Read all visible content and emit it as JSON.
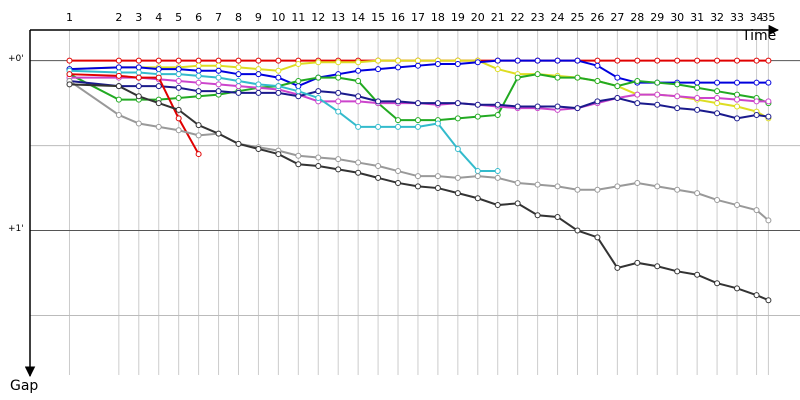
{
  "chart_data": {
    "type": "line",
    "xlabel": "Time",
    "ylabel": "Gap",
    "x": [
      2,
      4.5,
      5.51,
      6.52,
      7.53,
      8.54,
      9.55,
      10.56,
      11.57,
      12.58,
      13.59,
      14.6,
      15.61,
      16.62,
      17.63,
      18.64,
      19.65,
      20.66,
      21.67,
      22.68,
      23.69,
      24.7,
      25.71,
      26.72,
      27.73,
      28.74,
      29.75,
      30.76,
      31.77,
      32.78,
      33.79,
      34.8,
      35.81,
      36.8,
      37.4
    ],
    "x_labels": [
      "1",
      "2",
      "3",
      "4",
      "5",
      "6",
      "7",
      "8",
      "9",
      "10",
      "11",
      "12",
      "13",
      "14",
      "15",
      "16",
      "17",
      "18",
      "19",
      "20",
      "21",
      "22",
      "23",
      "24",
      "25",
      "26",
      "27",
      "28",
      "29",
      "30",
      "31",
      "32",
      "33",
      "34",
      "35"
    ],
    "xlim": [
      0,
      39
    ],
    "ylim": [
      -0.18,
      1.85
    ],
    "yticks": [
      {
        "value": 0,
        "label": "+0'"
      },
      {
        "value": 1,
        "label": "+1'"
      }
    ],
    "yminor": [
      0.5,
      1.5
    ],
    "series": [
      {
        "color": "#e00000",
        "values": [
          0,
          0,
          0,
          0,
          0,
          0,
          0,
          0,
          0,
          0,
          0,
          0,
          0,
          0,
          0,
          0,
          0,
          0,
          0,
          0,
          0,
          0,
          0,
          0,
          0,
          0,
          0,
          0,
          0,
          0,
          0,
          0,
          0,
          0,
          0
        ]
      },
      {
        "color": "#dddd22",
        "values": [
          0.05,
          0.04,
          0.04,
          0.04,
          0.04,
          0.03,
          0.03,
          0.04,
          0.05,
          0.06,
          0.02,
          0.01,
          0.01,
          0.01,
          0,
          0,
          0,
          0,
          0,
          0,
          0.05,
          0.08,
          0.08,
          0.09,
          0.1,
          0.12,
          0.15,
          0.2,
          0.2,
          0.21,
          0.23,
          0.25,
          0.27,
          0.3,
          0.34
        ]
      },
      {
        "color": "#0000dd",
        "values": [
          0.05,
          0.04,
          0.04,
          0.05,
          0.05,
          0.06,
          0.06,
          0.08,
          0.08,
          0.1,
          0.15,
          0.1,
          0.08,
          0.06,
          0.05,
          0.04,
          0.03,
          0.02,
          0.02,
          0.01,
          0,
          0,
          0,
          0,
          0,
          0.03,
          0.1,
          0.13,
          0.13,
          0.13,
          0.13,
          0.13,
          0.13,
          0.13,
          0.13
        ]
      },
      {
        "color": "#22aa22",
        "values": [
          0.08,
          0.23,
          0.23,
          0.23,
          0.22,
          0.21,
          0.2,
          0.18,
          0.16,
          0.15,
          0.12,
          0.1,
          0.1,
          0.12,
          0.25,
          0.35,
          0.35,
          0.35,
          0.34,
          0.33,
          0.32,
          0.1,
          0.08,
          0.1,
          0.1,
          0.12,
          0.15,
          0.12,
          0.13,
          0.14,
          0.16,
          0.18,
          0.2,
          0.22,
          0.25
        ]
      },
      {
        "color": "#cc44cc",
        "values": [
          0.1,
          0.1,
          0.1,
          0.11,
          0.12,
          0.13,
          0.14,
          0.15,
          0.16,
          0.17,
          0.2,
          0.24,
          0.24,
          0.24,
          0.25,
          0.25,
          0.25,
          0.26,
          0.25,
          0.26,
          0.27,
          0.28,
          0.28,
          0.29,
          0.28,
          0.25,
          0.22,
          0.2,
          0.2,
          0.21,
          0.22,
          0.22,
          0.23,
          0.24,
          0.24
        ]
      },
      {
        "color": "#1a1a8c",
        "values": [
          0.12,
          0.15,
          0.15,
          0.15,
          0.16,
          0.18,
          0.18,
          0.19,
          0.19,
          0.19,
          0.21,
          0.18,
          0.19,
          0.21,
          0.24,
          0.24,
          0.25,
          0.25,
          0.25,
          0.26,
          0.26,
          0.27,
          0.27,
          0.27,
          0.28,
          0.24,
          0.22,
          0.25,
          0.26,
          0.28,
          0.29,
          0.31,
          0.34,
          0.32,
          0.33
        ]
      },
      {
        "color": "#33bbcc",
        "values": [
          0.06,
          0.07,
          0.07,
          0.08,
          0.08,
          0.09,
          0.1,
          0.12,
          0.14,
          0.15,
          0.18,
          0.22,
          0.3,
          0.39,
          0.39,
          0.39,
          0.39,
          0.37,
          0.52,
          0.65,
          0.65,
          null,
          null,
          null,
          null,
          null,
          null,
          null,
          null,
          null,
          null,
          null,
          null,
          null,
          null
        ]
      },
      {
        "color": "#e00000",
        "values": [
          0.08,
          0.09,
          0.1,
          0.1,
          0.34,
          0.55,
          null,
          null,
          null,
          null,
          null,
          null,
          null,
          null,
          null,
          null,
          null,
          null,
          null,
          null,
          null,
          null,
          null,
          null,
          null,
          null,
          null,
          null,
          null,
          null,
          null,
          null,
          null,
          null,
          null
        ]
      },
      {
        "color": "#999999",
        "values": [
          0.12,
          0.32,
          0.37,
          0.39,
          0.41,
          0.44,
          0.43,
          0.49,
          0.51,
          0.53,
          0.56,
          0.57,
          0.58,
          0.6,
          0.62,
          0.65,
          0.68,
          0.68,
          0.69,
          0.68,
          0.69,
          0.72,
          0.73,
          0.74,
          0.76,
          0.76,
          0.74,
          0.72,
          0.74,
          0.76,
          0.78,
          0.82,
          0.85,
          0.88,
          0.94
        ]
      },
      {
        "color": "#333333",
        "values": [
          0.14,
          0.15,
          0.21,
          0.25,
          0.29,
          0.38,
          0.43,
          0.49,
          0.52,
          0.55,
          0.61,
          0.62,
          0.64,
          0.66,
          0.69,
          0.72,
          0.74,
          0.75,
          0.78,
          0.81,
          0.85,
          0.84,
          0.91,
          0.92,
          1.0,
          1.04,
          1.22,
          1.19,
          1.21,
          1.24,
          1.26,
          1.31,
          1.34,
          1.38,
          1.41
        ]
      }
    ]
  }
}
